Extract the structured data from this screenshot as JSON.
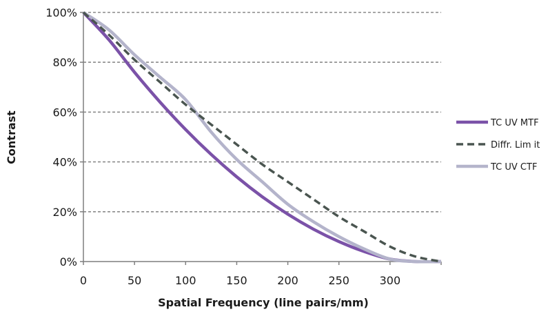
{
  "chart_data": {
    "type": "line",
    "title": "",
    "xlabel": "Spatial Frequency (line pairs/mm)",
    "ylabel": "Contrast",
    "xlim": [
      0,
      350
    ],
    "ylim": [
      0,
      100
    ],
    "x_ticks": [
      0,
      50,
      100,
      150,
      200,
      250,
      300
    ],
    "x_tick_labels": [
      "0",
      "50",
      "100",
      "150",
      "200",
      "250",
      "300"
    ],
    "y_ticks": [
      0,
      20,
      40,
      60,
      80,
      100
    ],
    "y_tick_labels": [
      "0%",
      "20%",
      "40%",
      "60%",
      "80%",
      "100%"
    ],
    "grid": "horizontal dashed",
    "legend_position": "right",
    "series": [
      {
        "name": "TC UV MTF",
        "color": "#7b52a8",
        "dash": "solid",
        "x": [
          0,
          25,
          50,
          75,
          100,
          125,
          150,
          175,
          200,
          225,
          250,
          275,
          300,
          325,
          350
        ],
        "y": [
          100,
          89,
          76,
          64,
          53,
          43,
          34,
          26,
          19,
          13,
          8,
          4,
          1,
          0,
          0
        ]
      },
      {
        "name": "Diffr. Lim it",
        "color": "#4a5550",
        "dash": "dashed",
        "x": [
          0,
          25,
          50,
          75,
          100,
          125,
          150,
          175,
          200,
          225,
          250,
          275,
          300,
          325,
          350
        ],
        "y": [
          100,
          91,
          81,
          72,
          63,
          55,
          47,
          39,
          32,
          25,
          18,
          12,
          6,
          2,
          0
        ]
      },
      {
        "name": "TC UV CTF",
        "color": "#b4b4cb",
        "dash": "solid",
        "x": [
          0,
          25,
          50,
          75,
          100,
          125,
          150,
          175,
          200,
          225,
          250,
          275,
          300,
          325,
          350
        ],
        "y": [
          100,
          93,
          83,
          74,
          65,
          52,
          41,
          32,
          23,
          16,
          10,
          5,
          1,
          0,
          0
        ]
      }
    ]
  }
}
